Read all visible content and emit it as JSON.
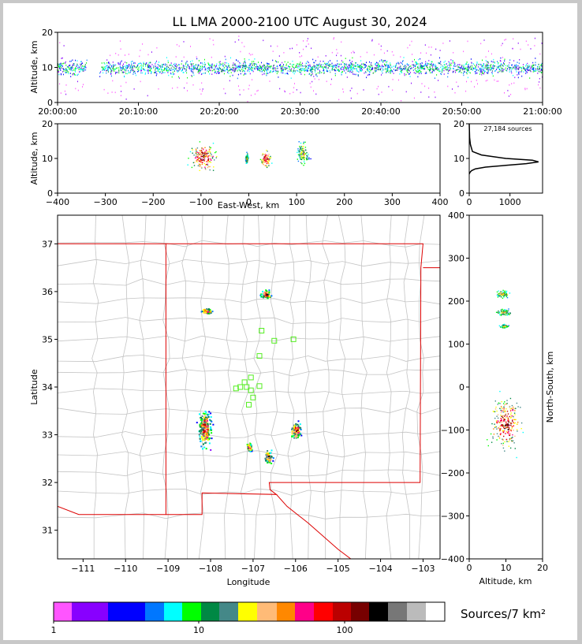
{
  "title": "LL LMA 2000-2100 UTC August 30, 2024",
  "panels": {
    "time_height": {
      "ylabel": "Altitude, km",
      "x_ticks": [
        "20:00:00",
        "20:10:00",
        "20:20:00",
        "20:30:00",
        "20:40:00",
        "20:50:00",
        "21:00:00"
      ],
      "y_ticks": [
        0,
        10,
        20
      ],
      "ylim": [
        0,
        20
      ]
    },
    "ew_height": {
      "ylabel": "Altitude, km",
      "xlabel": "East-West, km",
      "x_ticks": [
        -400,
        -300,
        -200,
        -100,
        0,
        100,
        200,
        300,
        400
      ],
      "y_ticks": [
        0,
        10,
        20
      ],
      "xlim": [
        -400,
        400
      ],
      "ylim": [
        0,
        20
      ]
    },
    "histogram": {
      "annotation": "27,184 sources",
      "x_ticks": [
        0,
        1000
      ],
      "y_ticks": [
        0,
        10,
        20
      ],
      "xlim": [
        0,
        1800
      ],
      "ylim": [
        0,
        20
      ]
    },
    "map": {
      "xlabel": "Longitude",
      "ylabel": "Latitude",
      "x_ticks": [
        -111,
        -110,
        -109,
        -108,
        -107,
        -106,
        -105,
        -104,
        -103
      ],
      "y_ticks": [
        31,
        32,
        33,
        34,
        35,
        36,
        37
      ],
      "xlim": [
        -111.6,
        -102.6
      ],
      "ylim": [
        30.4,
        37.6
      ]
    },
    "ns_height": {
      "xlabel": "Altitude, km",
      "ylabel": "North-South, km",
      "x_ticks": [
        0,
        10,
        20
      ],
      "y_ticks": [
        -400,
        -300,
        -200,
        -100,
        0,
        100,
        200,
        300,
        400
      ],
      "xlim": [
        0,
        20
      ],
      "ylim": [
        -400,
        400
      ]
    }
  },
  "colorbar": {
    "label": "Sources/7 km²",
    "tick_labels": [
      "1",
      "10",
      "100"
    ],
    "colors": [
      "#ff55ff",
      "#8800ff",
      "#0000ff",
      "#0077ff",
      "#00ffff",
      "#00ff00",
      "#008844",
      "#448888",
      "#ffff00",
      "#ffbb77",
      "#ff8800",
      "#ff0088",
      "#ff0000",
      "#bb0000",
      "#770000",
      "#000000",
      "#777777",
      "#bbbbbb",
      "#ffffff"
    ]
  },
  "chart_data": [
    {
      "type": "scatter",
      "panel": "time-height",
      "x_label_range": [
        "20:00:00",
        "21:00:00"
      ],
      "altitude_band_km": [
        6,
        14
      ],
      "peak_altitude_km": 10
    },
    {
      "type": "scatter",
      "panel": "east-west-height",
      "clusters": [
        {
          "x_km": [
            -140,
            -40
          ],
          "alt_km": [
            2,
            19
          ],
          "peak_x_km": -95
        },
        {
          "x_km": [
            -10,
            0
          ],
          "alt_km": [
            6,
            14
          ]
        },
        {
          "x_km": [
            20,
            60
          ],
          "alt_km": [
            5,
            15
          ],
          "peak_x_km": 35
        },
        {
          "x_km": [
            90,
            135
          ],
          "alt_km": [
            4,
            19
          ]
        }
      ]
    },
    {
      "type": "line",
      "panel": "altitude-histogram",
      "x": [
        0,
        20,
        60,
        150,
        400,
        900,
        1400,
        1700,
        1550,
        900,
        300,
        80,
        30,
        10,
        0
      ],
      "y": [
        5.5,
        6,
        6.5,
        7,
        7.5,
        8,
        8.5,
        9,
        9.5,
        10,
        11,
        12,
        14,
        16,
        20
      ],
      "peak_count": 1700,
      "peak_altitude_km": 9.2
    },
    {
      "type": "scatter",
      "panel": "map",
      "source_clusters": [
        {
          "lon": [
            -108.4,
            -107.9
          ],
          "lat": [
            32.5,
            33.8
          ]
        },
        {
          "lon": [
            -106.9,
            -106.5
          ],
          "lat": [
            35.8,
            36.1
          ]
        },
        {
          "lon": [
            -106.2,
            -105.8
          ],
          "lat": [
            32.8,
            33.4
          ]
        },
        {
          "lon": [
            -108.3,
            -107.9
          ],
          "lat": [
            35.5,
            35.7
          ]
        },
        {
          "lon": [
            -107.2,
            -107.0
          ],
          "lat": [
            32.6,
            32.9
          ]
        },
        {
          "lon": [
            -106.8,
            -106.5
          ],
          "lat": [
            32.3,
            32.8
          ]
        }
      ],
      "stations": [
        {
          "lon": -106.8,
          "lat": 35.18
        },
        {
          "lon": -106.5,
          "lat": 34.97
        },
        {
          "lon": -106.05,
          "lat": 35.0
        },
        {
          "lon": -106.85,
          "lat": 34.65
        },
        {
          "lon": -107.05,
          "lat": 34.2
        },
        {
          "lon": -107.2,
          "lat": 34.1
        },
        {
          "lon": -107.3,
          "lat": 34.0
        },
        {
          "lon": -107.15,
          "lat": 34.0
        },
        {
          "lon": -107.4,
          "lat": 33.97
        },
        {
          "lon": -107.05,
          "lat": 33.93
        },
        {
          "lon": -106.85,
          "lat": 34.02
        },
        {
          "lon": -107.0,
          "lat": 33.78
        },
        {
          "lon": -107.1,
          "lat": 33.63
        }
      ]
    },
    {
      "type": "scatter",
      "panel": "north-south-height",
      "clusters": [
        {
          "ns_km": [
            200,
            235
          ],
          "alt_km": [
            5,
            13
          ]
        },
        {
          "ns_km": [
            160,
            190
          ],
          "alt_km": [
            5,
            14
          ]
        },
        {
          "ns_km": [
            135,
            150
          ],
          "alt_km": [
            7,
            12
          ]
        },
        {
          "ns_km": [
            -200,
            20
          ],
          "alt_km": [
            1,
            19
          ],
          "peak_ns_km": -85
        }
      ]
    }
  ]
}
